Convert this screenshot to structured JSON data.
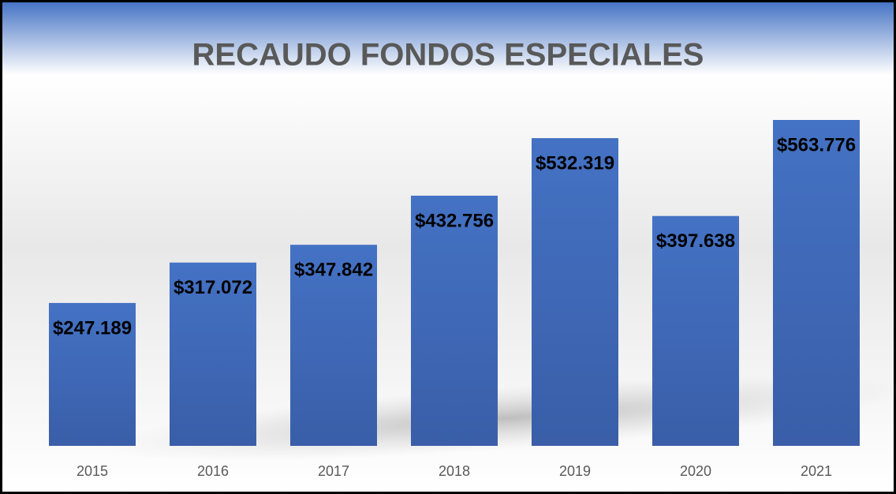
{
  "chart_data": {
    "type": "bar",
    "title": "RECAUDO FONDOS ESPECIALES",
    "categories": [
      "2015",
      "2016",
      "2017",
      "2018",
      "2019",
      "2020",
      "2021"
    ],
    "values": [
      247189,
      317072,
      347842,
      432756,
      532319,
      397638,
      563776
    ],
    "value_labels": [
      "$247.189",
      "$317.072",
      "$347.842",
      "$432.756",
      "$532.319",
      "$397.638",
      "$563.776"
    ],
    "color": "#4472c4"
  }
}
